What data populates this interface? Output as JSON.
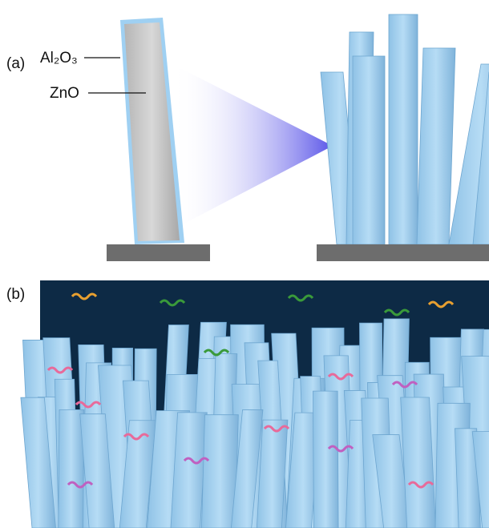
{
  "panel_a": {
    "label": "(a)",
    "shell_label": "Al₂O₃",
    "core_label": "ZnO"
  },
  "panel_b": {
    "label": "(b)"
  }
}
